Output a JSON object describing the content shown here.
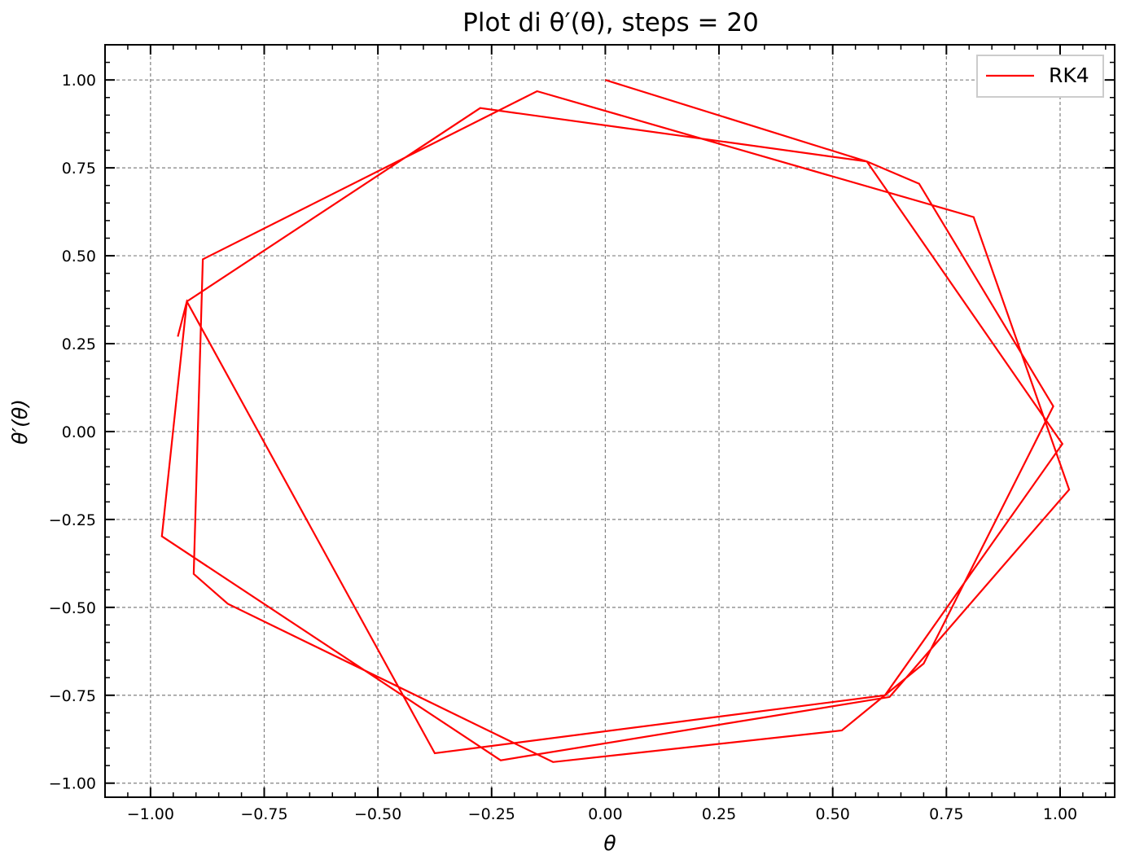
{
  "chart_data": {
    "type": "line",
    "title": "Plot di θ′(θ), steps = 20",
    "xlabel": "θ",
    "ylabel": "θ′(θ)",
    "xlim": [
      -1.1,
      1.12
    ],
    "ylim": [
      -1.04,
      1.1
    ],
    "grid": true,
    "legend_position": "top-right",
    "x_ticks": [
      -1.0,
      -0.75,
      -0.5,
      -0.25,
      0.0,
      0.25,
      0.5,
      0.75,
      1.0
    ],
    "x_tick_labels": [
      "−1.00",
      "−0.75",
      "−0.50",
      "−0.25",
      "0.00",
      "0.25",
      "0.50",
      "0.75",
      "1.00"
    ],
    "y_ticks": [
      1.0,
      0.75,
      0.5,
      0.25,
      0.0,
      -0.25,
      -0.5,
      -0.75,
      -1.0
    ],
    "y_tick_labels": [
      "1.00",
      "0.75",
      "0.50",
      "0.25",
      "0.00",
      "−0.25",
      "−0.50",
      "−0.75",
      "−1.00"
    ],
    "series": [
      {
        "name": "RK4",
        "color": "#ff0000",
        "x": [
          0.0,
          0.575,
          0.69,
          0.985,
          0.7,
          0.52,
          -0.115,
          -0.83,
          -0.905,
          -0.885,
          -0.15,
          0.81,
          1.02,
          0.625,
          -0.23,
          -0.975,
          -0.92,
          -0.275,
          0.575,
          1.005,
          0.615,
          -0.375,
          -0.92,
          -0.94
        ],
        "y": [
          1.0,
          0.768,
          0.705,
          0.072,
          -0.66,
          -0.85,
          -0.94,
          -0.49,
          -0.405,
          0.49,
          0.968,
          0.61,
          -0.165,
          -0.755,
          -0.935,
          -0.298,
          0.37,
          0.92,
          0.768,
          -0.035,
          -0.75,
          -0.915,
          0.37,
          0.27
        ]
      }
    ]
  }
}
